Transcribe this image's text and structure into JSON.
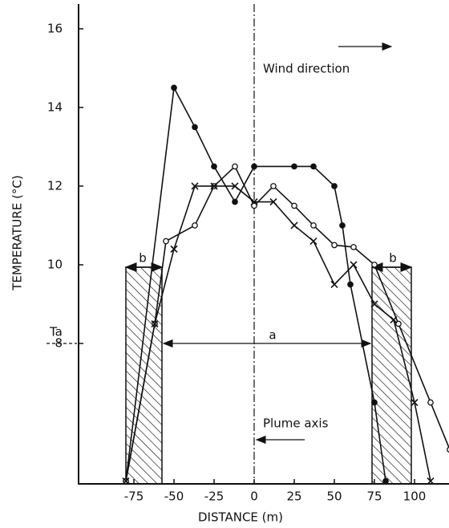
{
  "chart_data": {
    "type": "line",
    "xlabel": "DISTANCE (m)",
    "ylabel": "TEMPERATURE (°C)",
    "xlim": [
      -109.5,
      121.5
    ],
    "ylim": [
      4.43,
      16.63
    ],
    "xticks": [
      -75,
      -50,
      -25,
      0,
      25,
      50,
      75,
      100
    ],
    "yticks": [
      8,
      10,
      12,
      14,
      16
    ],
    "annotations": {
      "wind": "Wind direction",
      "plume": "Plume axis",
      "a": "a",
      "ta": "Ta",
      "b_left": "b",
      "b_right": "b"
    },
    "series": [
      {
        "color": "#111",
        "marker": "filled",
        "x": [
          -80,
          -50,
          -37,
          -25,
          -12,
          0,
          25,
          37,
          50,
          55,
          60,
          75,
          82
        ],
        "values": [
          4.5,
          14.5,
          13.5,
          12.5,
          11.6,
          12.5,
          12.5,
          12.5,
          12,
          11,
          9.5,
          6.5,
          4.5
        ]
      },
      {
        "color": "#111",
        "marker": "open",
        "x": [
          -80,
          -62,
          -55,
          -37,
          -25,
          -12,
          0,
          12,
          25,
          37,
          50,
          62,
          75,
          90,
          110,
          122
        ],
        "values": [
          4.5,
          8.5,
          10.6,
          11,
          12,
          12.5,
          11.5,
          12,
          11.5,
          11,
          10.5,
          10.45,
          10,
          8.5,
          6.5,
          5.3
        ]
      },
      {
        "color": "#111",
        "marker": "cross",
        "x": [
          -80,
          -62,
          -50,
          -37,
          -25,
          -12,
          0,
          12,
          25,
          37,
          50,
          62,
          75,
          87,
          100,
          110
        ],
        "values": [
          4.5,
          8.5,
          10.4,
          12,
          12,
          12,
          11.6,
          11.6,
          11,
          10.6,
          9.5,
          10,
          9,
          8.6,
          6.5,
          4.5
        ]
      }
    ]
  }
}
